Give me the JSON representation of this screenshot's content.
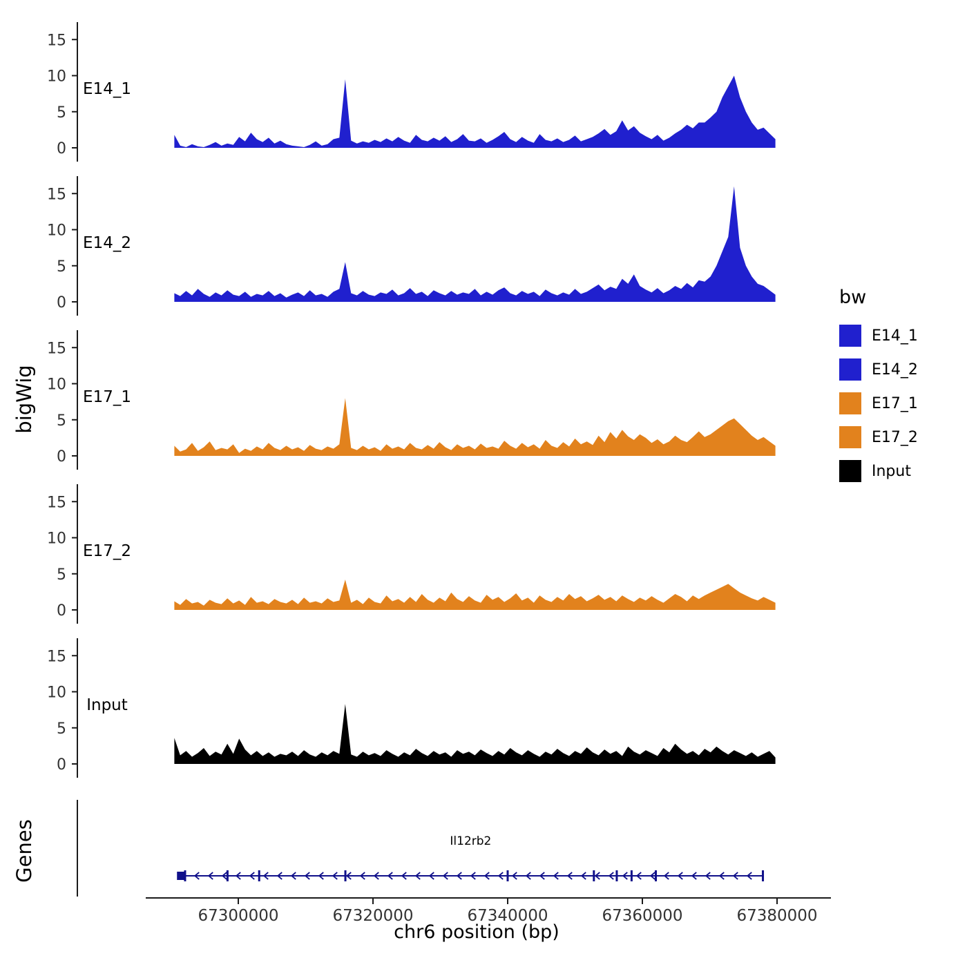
{
  "figure": {
    "bg": "#ffffff",
    "axis_color": "#1a1a1a"
  },
  "axes": {
    "y_title": "bigWig",
    "genes_title": "Genes",
    "x_title": "chr6 position (bp)",
    "y_ticks": [
      {
        "label": "0",
        "value": 0
      },
      {
        "label": "5",
        "value": 5
      },
      {
        "label": "10",
        "value": 10
      },
      {
        "label": "15",
        "value": 15
      }
    ],
    "x_ticks": [
      {
        "label": "67300000",
        "bp": 67300000
      },
      {
        "label": "67320000",
        "bp": 67320000
      },
      {
        "label": "67340000",
        "bp": 67340000
      },
      {
        "label": "67360000",
        "bp": 67360000
      },
      {
        "label": "67380000",
        "bp": 67380000
      }
    ]
  },
  "legend": {
    "title": "bw",
    "items": [
      {
        "label": "E14_1",
        "color": "#2020CE"
      },
      {
        "label": "E14_2",
        "color": "#2020CE"
      },
      {
        "label": "E17_1",
        "color": "#E2821D"
      },
      {
        "label": "E17_2",
        "color": "#E2821D"
      },
      {
        "label": "Input",
        "color": "#000000"
      }
    ]
  },
  "chart_data": {
    "type": "area",
    "title": "",
    "xlabel": "chr6 position (bp)",
    "ylabel": "bigWig",
    "chromosome": "chr6",
    "x_range": [
      67290500,
      67379750
    ],
    "x_start": 67290500,
    "x_step": 875,
    "ylim": [
      0,
      16.5
    ],
    "grid": false,
    "legend_position": "right",
    "series": [
      {
        "name": "E14_1",
        "color": "#2020CE",
        "values": [
          1.8,
          0.3,
          0.1,
          0.5,
          0.2,
          0.1,
          0.4,
          0.8,
          0.3,
          0.6,
          0.4,
          1.5,
          0.9,
          2.1,
          1.2,
          0.8,
          1.4,
          0.6,
          1.0,
          0.5,
          0.3,
          0.2,
          0.1,
          0.4,
          0.9,
          0.3,
          0.5,
          1.2,
          1.4,
          9.5,
          1.0,
          0.6,
          0.9,
          0.7,
          1.1,
          0.8,
          1.3,
          0.9,
          1.5,
          1.0,
          0.7,
          1.8,
          1.1,
          0.9,
          1.4,
          1.0,
          1.6,
          0.8,
          1.2,
          1.9,
          1.0,
          0.9,
          1.3,
          0.7,
          1.1,
          1.6,
          2.2,
          1.2,
          0.8,
          1.5,
          1.0,
          0.7,
          1.9,
          1.1,
          0.9,
          1.3,
          0.8,
          1.1,
          1.7,
          0.9,
          1.2,
          1.5,
          2.0,
          2.6,
          1.8,
          2.3,
          3.8,
          2.4,
          3.0,
          2.1,
          1.6,
          1.2,
          1.8,
          1.0,
          1.4,
          2.0,
          2.5,
          3.2,
          2.7,
          3.5,
          3.5,
          4.2,
          5.0,
          7.0,
          8.5,
          10.0,
          7.0,
          5.0,
          3.5,
          2.5,
          2.8,
          2.0,
          1.2
        ]
      },
      {
        "name": "E14_2",
        "color": "#2020CE",
        "values": [
          1.2,
          0.8,
          1.5,
          0.9,
          1.8,
          1.1,
          0.7,
          1.3,
          0.9,
          1.6,
          1.0,
          0.8,
          1.4,
          0.7,
          1.1,
          0.9,
          1.5,
          0.8,
          1.2,
          0.6,
          1.0,
          1.3,
          0.8,
          1.6,
          0.9,
          1.1,
          0.7,
          1.4,
          1.8,
          5.5,
          1.2,
          0.9,
          1.5,
          1.0,
          0.8,
          1.3,
          1.1,
          1.7,
          0.9,
          1.2,
          1.9,
          1.1,
          1.4,
          0.8,
          1.6,
          1.2,
          0.9,
          1.5,
          1.0,
          1.3,
          1.1,
          1.8,
          0.9,
          1.4,
          1.0,
          1.6,
          2.0,
          1.2,
          0.9,
          1.5,
          1.1,
          1.4,
          0.8,
          1.7,
          1.2,
          0.9,
          1.3,
          1.0,
          1.8,
          1.1,
          1.4,
          1.9,
          2.4,
          1.6,
          2.1,
          1.8,
          3.2,
          2.5,
          3.8,
          2.2,
          1.7,
          1.3,
          1.9,
          1.2,
          1.6,
          2.2,
          1.8,
          2.6,
          2.0,
          3.0,
          2.8,
          3.5,
          5.0,
          7.0,
          9.0,
          16.0,
          7.5,
          5.0,
          3.5,
          2.5,
          2.2,
          1.6,
          1.0
        ]
      },
      {
        "name": "E17_1",
        "color": "#E2821D",
        "values": [
          1.4,
          0.6,
          0.9,
          1.8,
          0.7,
          1.2,
          2.0,
          0.8,
          1.1,
          0.9,
          1.6,
          0.4,
          1.0,
          0.7,
          1.3,
          0.9,
          1.8,
          1.1,
          0.8,
          1.4,
          0.9,
          1.2,
          0.7,
          1.5,
          1.0,
          0.8,
          1.3,
          1.0,
          1.6,
          8.0,
          1.1,
          0.8,
          1.4,
          0.9,
          1.2,
          0.7,
          1.6,
          1.0,
          1.3,
          0.9,
          1.8,
          1.1,
          0.9,
          1.5,
          1.0,
          1.9,
          1.2,
          0.8,
          1.6,
          1.1,
          1.4,
          0.9,
          1.7,
          1.1,
          1.3,
          1.0,
          2.1,
          1.4,
          1.0,
          1.8,
          1.2,
          1.6,
          1.0,
          2.2,
          1.4,
          1.1,
          1.9,
          1.3,
          2.4,
          1.6,
          2.0,
          1.5,
          2.8,
          1.9,
          3.3,
          2.4,
          3.6,
          2.7,
          2.2,
          3.0,
          2.5,
          1.8,
          2.3,
          1.6,
          2.0,
          2.8,
          2.2,
          1.9,
          2.6,
          3.4,
          2.6,
          3.0,
          3.6,
          4.2,
          4.8,
          5.2,
          4.4,
          3.6,
          2.8,
          2.2,
          2.6,
          2.0,
          1.4
        ]
      },
      {
        "name": "E17_2",
        "color": "#E2821D",
        "values": [
          1.2,
          0.7,
          1.5,
          0.9,
          1.1,
          0.6,
          1.4,
          1.0,
          0.8,
          1.6,
          0.9,
          1.3,
          0.7,
          1.8,
          1.0,
          1.2,
          0.8,
          1.5,
          1.1,
          0.9,
          1.4,
          0.8,
          1.7,
          1.0,
          1.2,
          0.9,
          1.6,
          1.1,
          1.3,
          4.2,
          1.0,
          1.4,
          0.8,
          1.7,
          1.1,
          0.9,
          2.0,
          1.2,
          1.5,
          1.0,
          1.8,
          1.1,
          2.2,
          1.4,
          1.0,
          1.7,
          1.2,
          2.4,
          1.5,
          1.1,
          1.9,
          1.3,
          1.0,
          2.1,
          1.4,
          1.8,
          1.1,
          1.6,
          2.3,
          1.3,
          1.7,
          1.0,
          2.0,
          1.4,
          1.1,
          1.8,
          1.3,
          2.2,
          1.5,
          1.9,
          1.2,
          1.6,
          2.1,
          1.4,
          1.8,
          1.2,
          2.0,
          1.5,
          1.1,
          1.7,
          1.3,
          1.9,
          1.4,
          1.0,
          1.6,
          2.2,
          1.8,
          1.2,
          2.0,
          1.5,
          2.0,
          2.4,
          2.8,
          3.2,
          3.6,
          3.0,
          2.4,
          2.0,
          1.6,
          1.3,
          1.8,
          1.4,
          1.0
        ]
      },
      {
        "name": "Input",
        "color": "#000000",
        "values": [
          3.6,
          1.2,
          1.8,
          1.0,
          1.5,
          2.2,
          1.1,
          1.7,
          1.3,
          2.8,
          1.4,
          3.5,
          2.0,
          1.2,
          1.8,
          1.1,
          1.6,
          1.0,
          1.4,
          1.2,
          1.7,
          1.1,
          1.9,
          1.3,
          1.0,
          1.6,
          1.2,
          1.8,
          1.4,
          8.3,
          1.3,
          1.0,
          1.7,
          1.2,
          1.5,
          1.1,
          1.9,
          1.4,
          1.0,
          1.6,
          1.2,
          2.1,
          1.5,
          1.1,
          1.8,
          1.3,
          1.6,
          1.0,
          1.9,
          1.4,
          1.7,
          1.2,
          2.0,
          1.5,
          1.1,
          1.8,
          1.3,
          2.2,
          1.6,
          1.2,
          1.9,
          1.4,
          1.0,
          1.7,
          1.3,
          2.1,
          1.5,
          1.1,
          1.8,
          1.4,
          2.3,
          1.6,
          1.2,
          2.0,
          1.4,
          1.8,
          1.1,
          2.4,
          1.7,
          1.3,
          1.9,
          1.5,
          1.1,
          2.2,
          1.6,
          2.8,
          2.0,
          1.4,
          1.8,
          1.2,
          2.1,
          1.6,
          2.4,
          1.8,
          1.3,
          1.9,
          1.5,
          1.1,
          1.6,
          1.0,
          1.4,
          1.8,
          0.9
        ]
      }
    ],
    "gene": {
      "name": "Il12rb2",
      "chrom": "chr6",
      "start": 67291100,
      "end": 67377900,
      "strand": "-",
      "color": "#10108A",
      "exon_marks": [
        67292100,
        67298400,
        67303100,
        67315900,
        67340000,
        67352800,
        67356200,
        67358400,
        67362000,
        67377900
      ]
    }
  }
}
